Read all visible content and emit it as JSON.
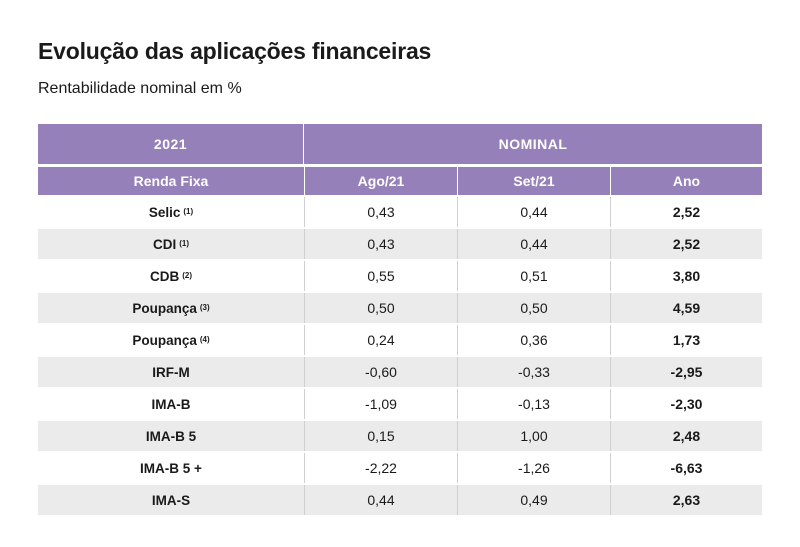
{
  "title": "Evolução das aplicações financeiras",
  "subtitle": "Rentabilidade nominal em %",
  "table": {
    "year": "2021",
    "group": "NOMINAL",
    "columns": [
      "Renda Fixa",
      "Ago/21",
      "Set/21",
      "Ano"
    ],
    "rows": [
      {
        "name": "Selic",
        "note": "(1)",
        "ago": "0,43",
        "set": "0,44",
        "ano": "2,52"
      },
      {
        "name": "CDI",
        "note": "(1)",
        "ago": "0,43",
        "set": "0,44",
        "ano": "2,52"
      },
      {
        "name": "CDB",
        "note": "(2)",
        "ago": "0,55",
        "set": "0,51",
        "ano": "3,80"
      },
      {
        "name": "Poupança",
        "note": "(3)",
        "ago": "0,50",
        "set": "0,50",
        "ano": "4,59"
      },
      {
        "name": "Poupança",
        "note": "(4)",
        "ago": "0,24",
        "set": "0,36",
        "ano": "1,73"
      },
      {
        "name": "IRF-M",
        "note": "",
        "ago": "-0,60",
        "set": "-0,33",
        "ano": "-2,95"
      },
      {
        "name": "IMA-B",
        "note": "",
        "ago": "-1,09",
        "set": "-0,13",
        "ano": "-2,30"
      },
      {
        "name": "IMA-B 5",
        "note": "",
        "ago": "0,15",
        "set": "1,00",
        "ano": "2,48"
      },
      {
        "name": "IMA-B 5 +",
        "note": "",
        "ago": "-2,22",
        "set": "-1,26",
        "ano": "-6,63"
      },
      {
        "name": "IMA-S",
        "note": "",
        "ago": "0,44",
        "set": "0,49",
        "ano": "2,63"
      }
    ]
  },
  "colors": {
    "header_bg": "#9680b9",
    "header_text": "#ffffff",
    "row_shade": "#ebebeb"
  }
}
